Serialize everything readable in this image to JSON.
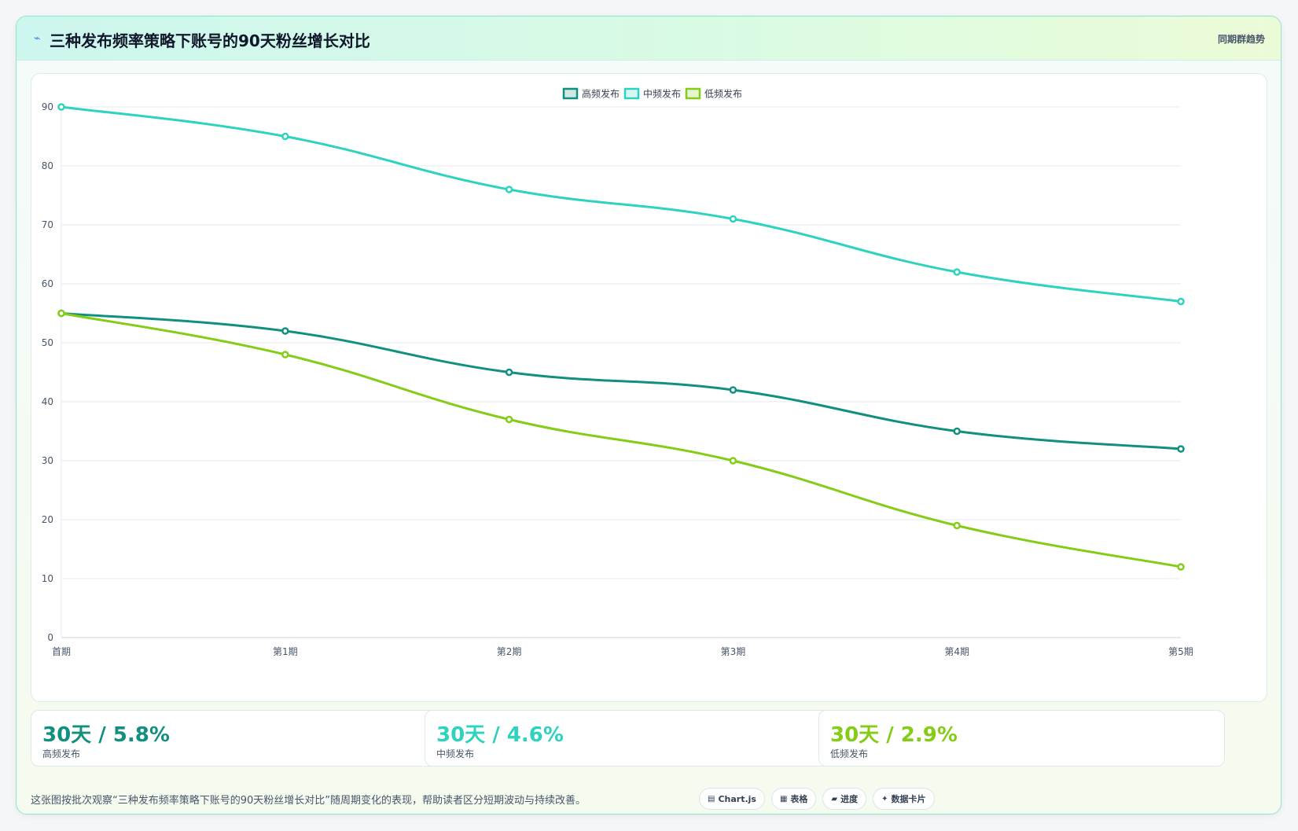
{
  "header": {
    "icon": "chart-line-icon",
    "title": "三种发布频率策略下账号的90天粉丝增长对比",
    "badge": "同期群趋势"
  },
  "chart_data": {
    "type": "line",
    "title": "",
    "xlabel": "",
    "ylabel": "",
    "categories": [
      "首期",
      "第1期",
      "第2期",
      "第3期",
      "第4期",
      "第5期"
    ],
    "ylim": [
      0,
      90
    ],
    "yticks": [
      0,
      10,
      20,
      30,
      40,
      50,
      60,
      70,
      80,
      90
    ],
    "grid": true,
    "legend_position": "top-center",
    "series": [
      {
        "name": "高频发布",
        "color": "#12907f",
        "values": [
          55,
          52,
          45,
          42,
          35,
          32
        ]
      },
      {
        "name": "中频发布",
        "color": "#2ed3c0",
        "values": [
          90,
          85,
          76,
          71,
          62,
          57
        ]
      },
      {
        "name": "低频发布",
        "color": "#84cc16",
        "values": [
          55,
          48,
          37,
          30,
          19,
          12
        ]
      }
    ]
  },
  "stats": [
    {
      "value": "30天 / 5.8%",
      "label": "高频发布",
      "color": "#12907f"
    },
    {
      "value": "30天 / 4.6%",
      "label": "中频发布",
      "color": "#2ed3c0"
    },
    {
      "value": "30天 / 2.9%",
      "label": "低频发布",
      "color": "#84cc16"
    }
  ],
  "footnote": "这张图按批次观察“三种发布频率策略下账号的90天粉丝增长对比”随周期变化的表现，帮助读者区分短期波动与持续改善。",
  "pills": [
    {
      "icon": "▤",
      "label": "Chart.js"
    },
    {
      "icon": "▦",
      "label": "表格"
    },
    {
      "icon": "▰",
      "label": "进度"
    },
    {
      "icon": "✦",
      "label": "数据卡片"
    }
  ]
}
